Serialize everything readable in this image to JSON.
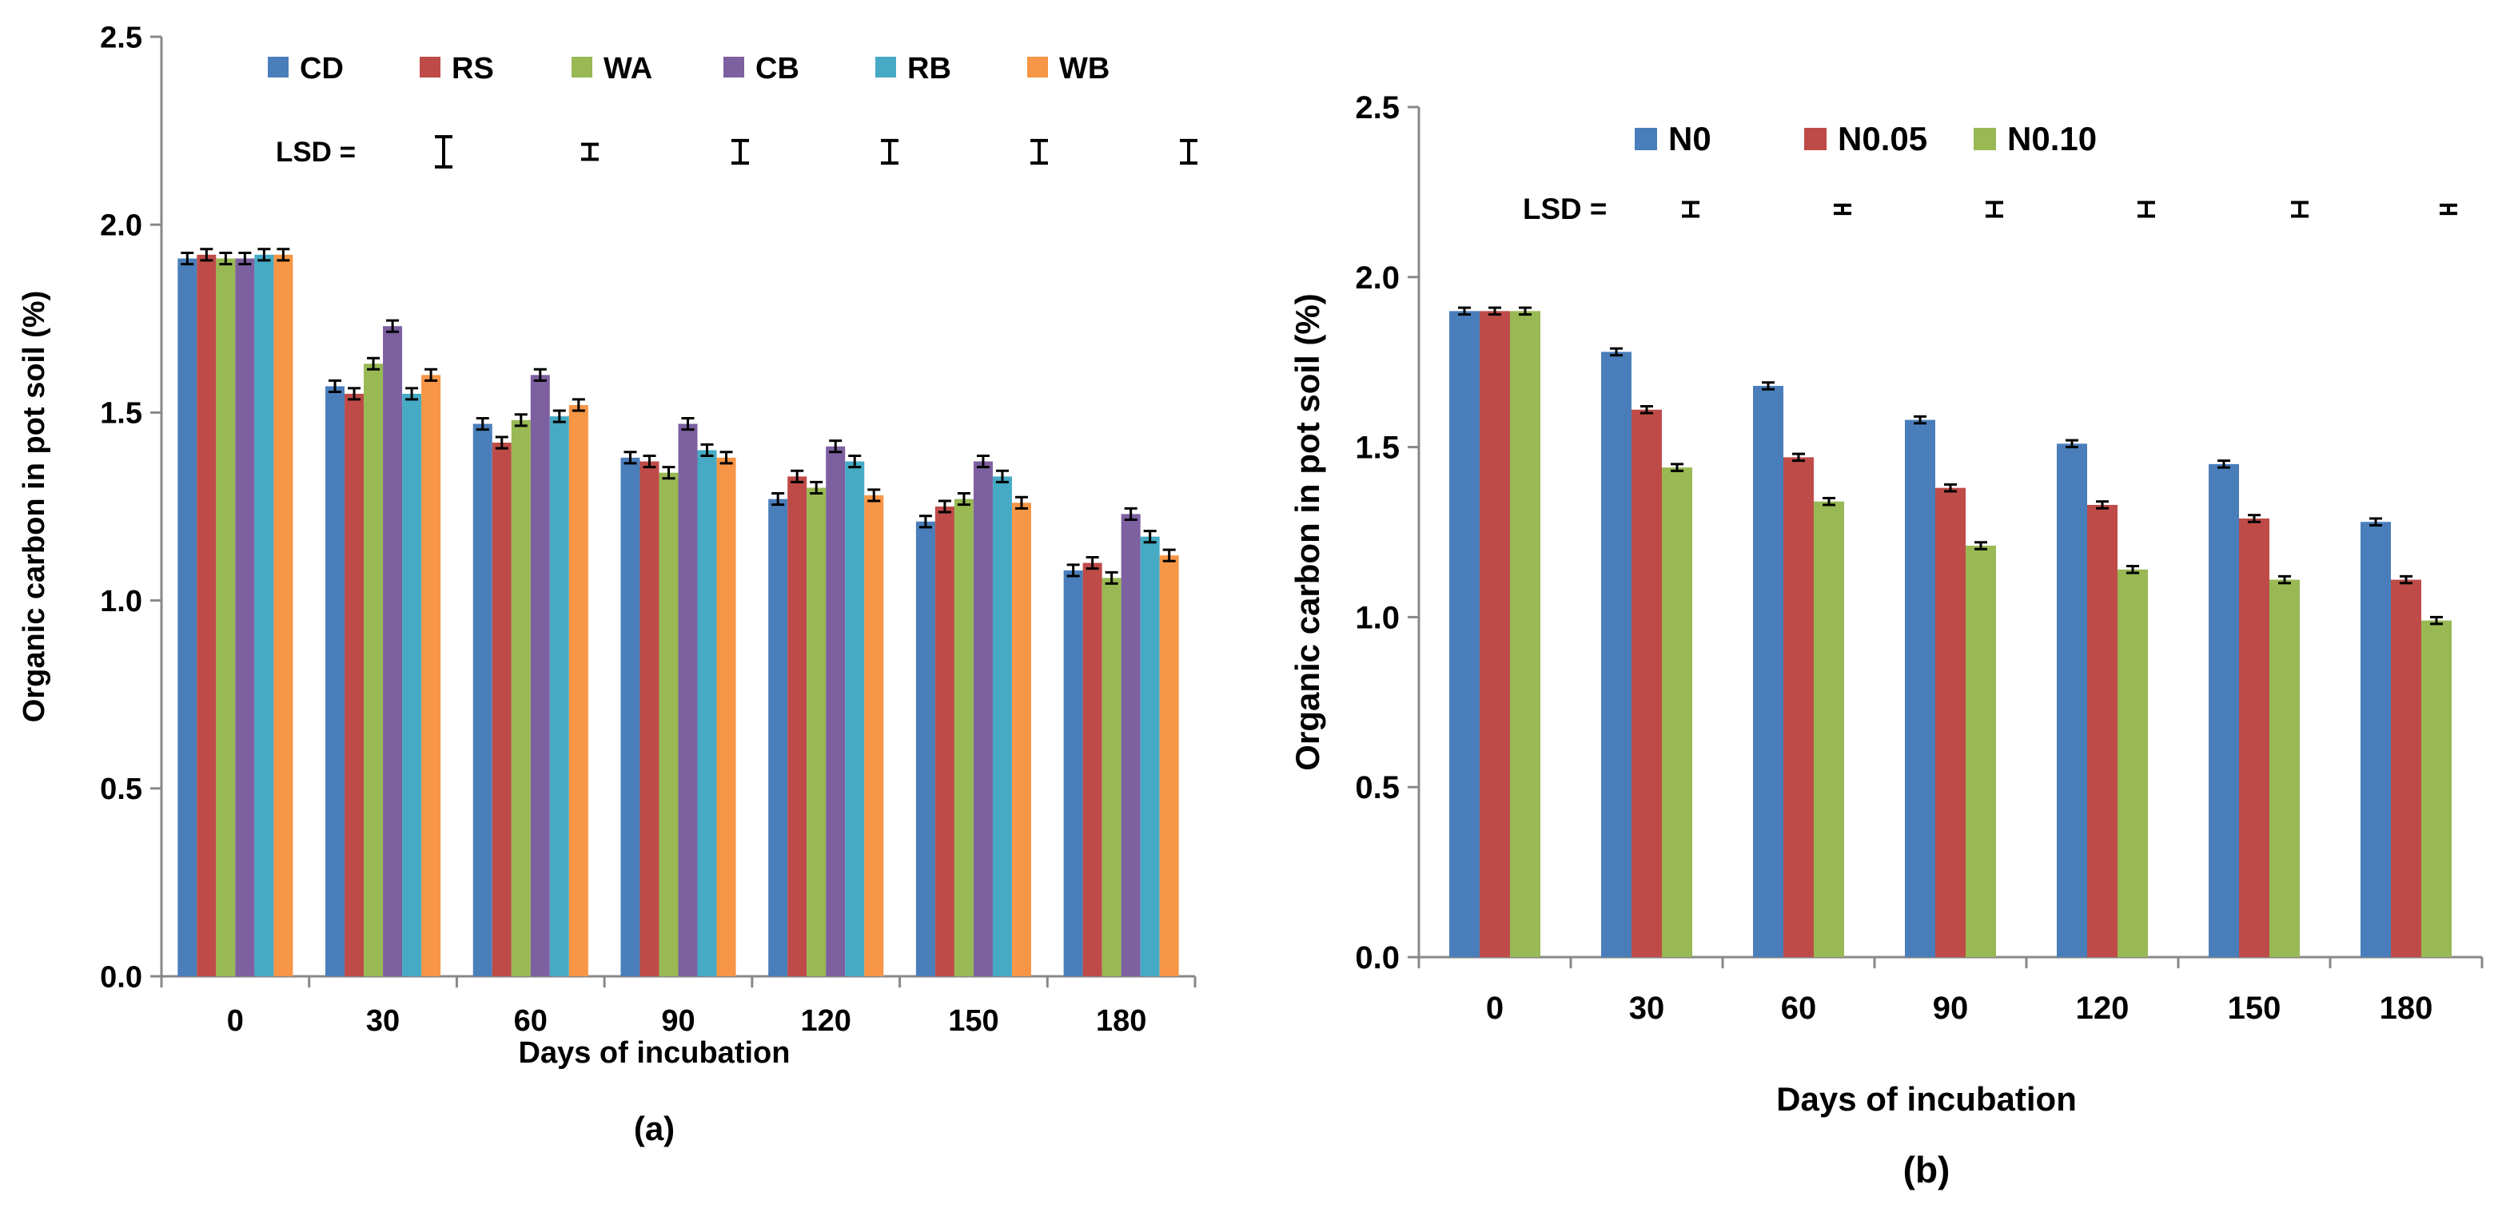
{
  "chart_data": [
    {
      "type": "bar",
      "panel_label": "(a)",
      "title": "",
      "xlabel": "Days of incubation",
      "ylabel": "Organic carbon in pot soil (%)",
      "ylim": [
        0,
        2.5
      ],
      "yticks": [
        "0.0",
        "0.5",
        "1.0",
        "1.5",
        "2.0",
        "2.5"
      ],
      "categories": [
        "0",
        "30",
        "60",
        "90",
        "120",
        "150",
        "180"
      ],
      "grid": false,
      "legend_position": "top",
      "lsd_label": "LSD =",
      "lsd_values": [
        0.04,
        0.02,
        0.03,
        0.03,
        0.03,
        0.03
      ],
      "series": [
        {
          "name": "CD",
          "color": "#4A7EBB",
          "values": [
            1.91,
            1.57,
            1.47,
            1.38,
            1.27,
            1.21,
            1.08
          ]
        },
        {
          "name": "RS",
          "color": "#BE4B48",
          "values": [
            1.92,
            1.55,
            1.42,
            1.37,
            1.33,
            1.25,
            1.1
          ]
        },
        {
          "name": "WA",
          "color": "#98B954",
          "values": [
            1.91,
            1.63,
            1.48,
            1.34,
            1.3,
            1.27,
            1.06
          ]
        },
        {
          "name": "CB",
          "color": "#7D60A0",
          "values": [
            1.91,
            1.73,
            1.6,
            1.47,
            1.41,
            1.37,
            1.23
          ]
        },
        {
          "name": "RB",
          "color": "#46AAC5",
          "values": [
            1.92,
            1.55,
            1.49,
            1.4,
            1.37,
            1.33,
            1.17
          ]
        },
        {
          "name": "WB",
          "color": "#F79646",
          "values": [
            1.92,
            1.6,
            1.52,
            1.38,
            1.28,
            1.26,
            1.12
          ]
        }
      ],
      "error": 0.015
    },
    {
      "type": "bar",
      "panel_label": "(b)",
      "title": "",
      "xlabel": "Days of incubation",
      "ylabel": "Organic carbon in pot soil (%)",
      "ylim": [
        0,
        2.5
      ],
      "yticks": [
        "0.0",
        "0.5",
        "1.0",
        "1.5",
        "2.0",
        "2.5"
      ],
      "categories": [
        "0",
        "30",
        "60",
        "90",
        "120",
        "150",
        "180"
      ],
      "grid": false,
      "legend_position": "top",
      "lsd_label": "LSD =",
      "lsd_values": [
        0.02,
        0.01,
        0.02,
        0.02,
        0.02,
        0.01
      ],
      "series": [
        {
          "name": "N0",
          "color": "#4A7EBB",
          "values": [
            1.9,
            1.78,
            1.68,
            1.58,
            1.51,
            1.45,
            1.28
          ]
        },
        {
          "name": "N0.05",
          "color": "#BE4B48",
          "values": [
            1.9,
            1.61,
            1.47,
            1.38,
            1.33,
            1.29,
            1.11
          ]
        },
        {
          "name": "N0.10",
          "color": "#98B954",
          "values": [
            1.9,
            1.44,
            1.34,
            1.21,
            1.14,
            1.11,
            0.99
          ]
        }
      ],
      "error": 0.01
    }
  ]
}
